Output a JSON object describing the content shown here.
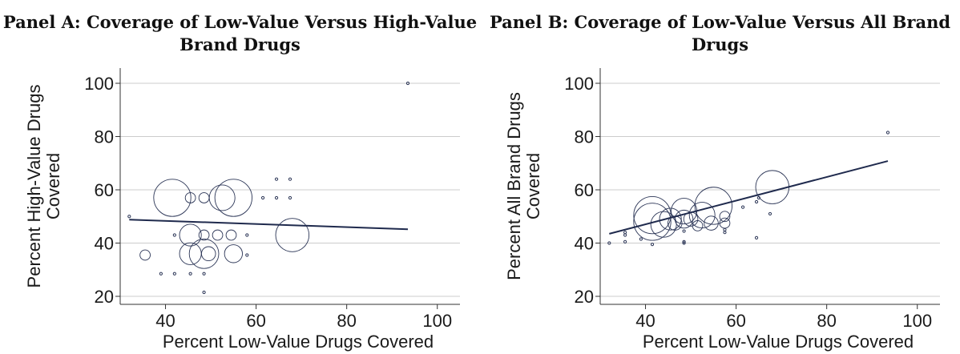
{
  "chart_data": [
    {
      "type": "scatter",
      "title": "Panel A: Coverage of Low-Value Versus High-Value Brand Drugs",
      "xlabel": "Percent Low-Value Drugs Covered",
      "ylabel": "Percent High-Value Drugs Covered",
      "xlim": [
        30,
        105
      ],
      "ylim": [
        20,
        100
      ],
      "xticks": [
        "40",
        "60",
        "80",
        "100"
      ],
      "yticks": [
        "20",
        "40",
        "60",
        "80",
        "100"
      ],
      "grid": "horizontal",
      "colors": {
        "marker": "#2b3556",
        "line": "#1f2a4d",
        "grid": "#cccccc"
      },
      "points": [
        {
          "x": 93.5,
          "y": 100,
          "w": 1
        },
        {
          "x": 41.5,
          "y": 57,
          "w": 9
        },
        {
          "x": 45.5,
          "y": 57,
          "w": 2
        },
        {
          "x": 48.5,
          "y": 57,
          "w": 2
        },
        {
          "x": 52.5,
          "y": 57,
          "w": 6
        },
        {
          "x": 55,
          "y": 57,
          "w": 9
        },
        {
          "x": 61.5,
          "y": 57,
          "w": 1
        },
        {
          "x": 64.5,
          "y": 57,
          "w": 1
        },
        {
          "x": 64.5,
          "y": 64,
          "w": 1
        },
        {
          "x": 67.5,
          "y": 64,
          "w": 1
        },
        {
          "x": 67.5,
          "y": 57,
          "w": 1
        },
        {
          "x": 32,
          "y": 50,
          "w": 1
        },
        {
          "x": 42,
          "y": 43,
          "w": 1
        },
        {
          "x": 45.5,
          "y": 43,
          "w": 5
        },
        {
          "x": 48.5,
          "y": 43,
          "w": 2
        },
        {
          "x": 51.5,
          "y": 43,
          "w": 2
        },
        {
          "x": 54.5,
          "y": 43,
          "w": 2
        },
        {
          "x": 58,
          "y": 43,
          "w": 1
        },
        {
          "x": 68,
          "y": 43,
          "w": 8
        },
        {
          "x": 35.5,
          "y": 35.5,
          "w": 2
        },
        {
          "x": 45.5,
          "y": 36,
          "w": 5
        },
        {
          "x": 48.5,
          "y": 36,
          "w": 7
        },
        {
          "x": 49.5,
          "y": 36,
          "w": 3
        },
        {
          "x": 55,
          "y": 36,
          "w": 4
        },
        {
          "x": 58,
          "y": 35.5,
          "w": 1
        },
        {
          "x": 39,
          "y": 28.5,
          "w": 1
        },
        {
          "x": 42,
          "y": 28.5,
          "w": 1
        },
        {
          "x": 45.5,
          "y": 28.5,
          "w": 1
        },
        {
          "x": 48.5,
          "y": 28.5,
          "w": 1
        },
        {
          "x": 48.5,
          "y": 21.5,
          "w": 1
        }
      ],
      "fit_line": {
        "x": [
          32,
          93.5
        ],
        "y": [
          48.8,
          45.2
        ]
      }
    },
    {
      "type": "scatter",
      "title": "Panel B: Coverage of Low-Value Versus All Brand Drugs",
      "xlabel": "Percent Low-Value Drugs Covered",
      "ylabel": "Percent All Brand Drugs Covered",
      "xlim": [
        30,
        105
      ],
      "ylim": [
        20,
        100
      ],
      "xticks": [
        "40",
        "60",
        "80",
        "100"
      ],
      "yticks": [
        "20",
        "40",
        "60",
        "80",
        "100"
      ],
      "grid": "horizontal",
      "colors": {
        "marker": "#2b3556",
        "line": "#1f2a4d",
        "grid": "#cccccc"
      },
      "points": [
        {
          "x": 93.5,
          "y": 81.5,
          "w": 1
        },
        {
          "x": 68,
          "y": 61,
          "w": 8
        },
        {
          "x": 65,
          "y": 57,
          "w": 1
        },
        {
          "x": 64.5,
          "y": 55.5,
          "w": 1
        },
        {
          "x": 61.5,
          "y": 53.5,
          "w": 1
        },
        {
          "x": 55,
          "y": 54,
          "w": 9
        },
        {
          "x": 52.5,
          "y": 50.5,
          "w": 6
        },
        {
          "x": 57.5,
          "y": 50,
          "w": 2
        },
        {
          "x": 57.5,
          "y": 47.5,
          "w": 2
        },
        {
          "x": 41.5,
          "y": 50.5,
          "w": 9
        },
        {
          "x": 45.5,
          "y": 49,
          "w": 5
        },
        {
          "x": 48.5,
          "y": 52,
          "w": 6
        },
        {
          "x": 48.5,
          "y": 49,
          "w": 4
        },
        {
          "x": 50,
          "y": 49,
          "w": 3
        },
        {
          "x": 41.5,
          "y": 48,
          "w": 9
        },
        {
          "x": 44,
          "y": 47,
          "w": 6
        },
        {
          "x": 46.5,
          "y": 47.5,
          "w": 3
        },
        {
          "x": 51.5,
          "y": 46.5,
          "w": 2
        },
        {
          "x": 54.5,
          "y": 47.5,
          "w": 3
        },
        {
          "x": 57.5,
          "y": 45,
          "w": 1
        },
        {
          "x": 57.5,
          "y": 44,
          "w": 1
        },
        {
          "x": 48.5,
          "y": 44.5,
          "w": 1
        },
        {
          "x": 35.5,
          "y": 44,
          "w": 1
        },
        {
          "x": 35.5,
          "y": 43,
          "w": 1
        },
        {
          "x": 39,
          "y": 41.5,
          "w": 1
        },
        {
          "x": 35.5,
          "y": 40.5,
          "w": 1
        },
        {
          "x": 41.5,
          "y": 39.5,
          "w": 1
        },
        {
          "x": 48.5,
          "y": 40.5,
          "w": 1
        },
        {
          "x": 48.5,
          "y": 40,
          "w": 1
        },
        {
          "x": 64.5,
          "y": 42,
          "w": 1
        },
        {
          "x": 67.5,
          "y": 51,
          "w": 1
        },
        {
          "x": 32,
          "y": 40,
          "w": 1
        }
      ],
      "fit_line": {
        "x": [
          32,
          93.5
        ],
        "y": [
          43.5,
          70.8
        ]
      }
    }
  ]
}
